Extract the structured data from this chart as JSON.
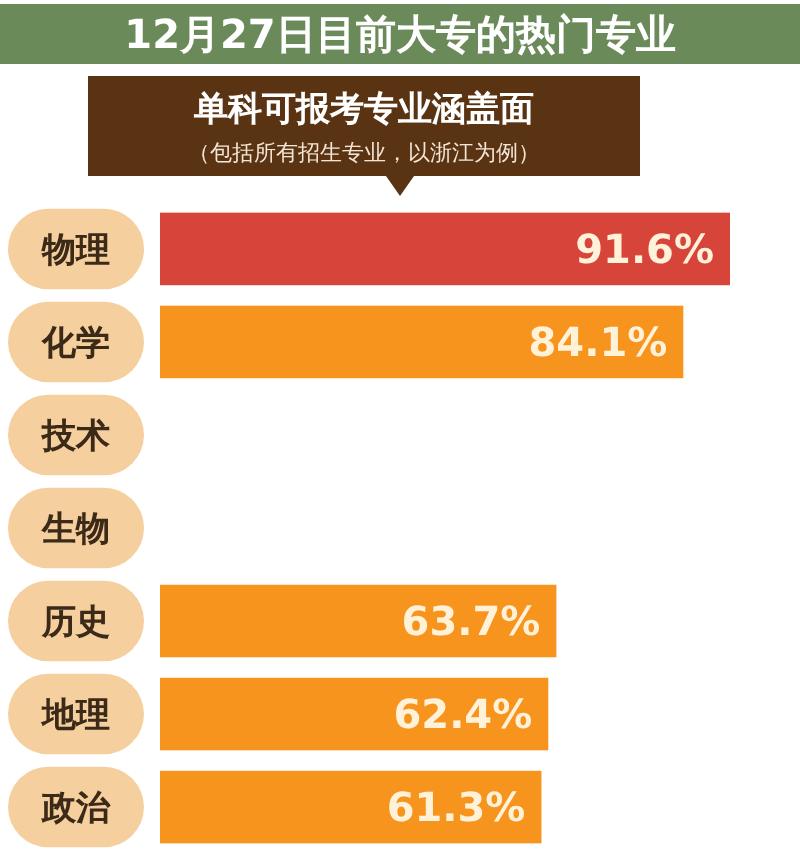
{
  "chart_data": {
    "type": "bar",
    "orientation": "horizontal",
    "title": "单科可报考专业涵盖面",
    "subtitle": "（包括所有招生专业，以浙江为例）",
    "annotations": [
      "12月27日目前大专的热门专业"
    ],
    "categories": [
      "物理",
      "化学",
      "技术",
      "生物",
      "历史",
      "地理",
      "政治"
    ],
    "values": [
      91.6,
      84.1,
      null,
      null,
      63.7,
      62.4,
      61.3
    ],
    "value_labels": [
      "91.6%",
      "84.1%",
      null,
      null,
      "63.7%",
      "62.4%",
      "61.3%"
    ],
    "colors": [
      "#d6443a",
      "#f7941d",
      null,
      null,
      "#f7941d",
      "#f7941d",
      "#f7941d"
    ],
    "tick_labels": "y"
  }
}
